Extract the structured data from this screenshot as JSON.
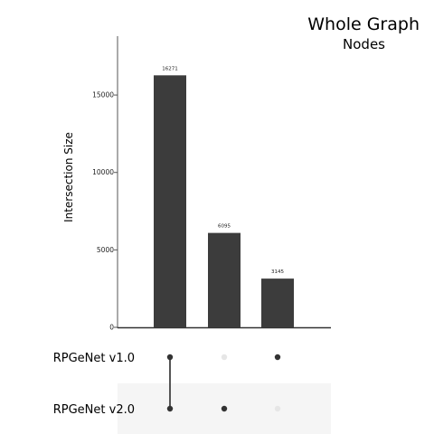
{
  "chart_data": {
    "type": "bar",
    "title": "Whole Graph",
    "subtitle": "Nodes",
    "ylabel": "Intersection Size",
    "ylim": [
      0,
      18800
    ],
    "yticks": [
      0,
      5000,
      10000,
      15000
    ],
    "categories": [
      "RPGeNet v1.0 & RPGeNet v2.0",
      "RPGeNet v2.0",
      "RPGeNet v1.0"
    ],
    "values": [
      16271,
      6095,
      3145
    ],
    "bar_color": "#3c3c3c",
    "sets": [
      "RPGeNet v1.0",
      "RPGeNet v2.0"
    ],
    "membership": [
      [
        1,
        1
      ],
      [
        0,
        1
      ],
      [
        1,
        0
      ]
    ],
    "dot_active_color": "#333333",
    "dot_inactive_color": "#e6e6e6",
    "shade_color": "#f5f5f5"
  }
}
